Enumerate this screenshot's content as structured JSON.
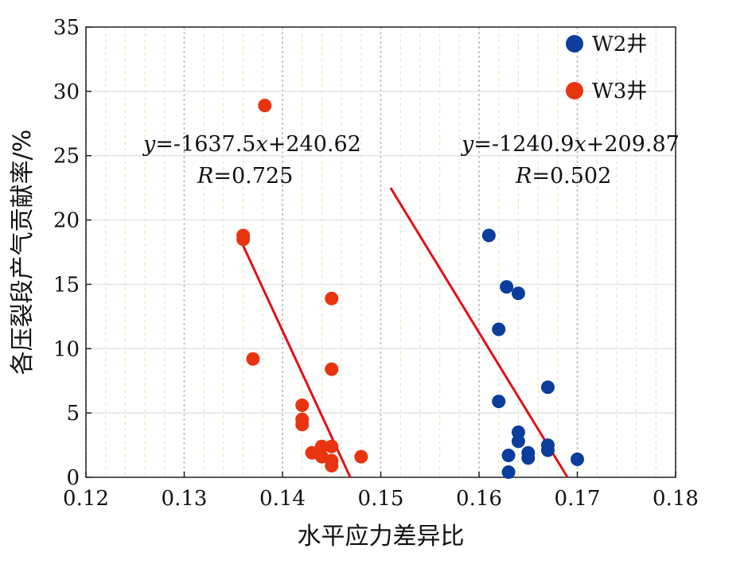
{
  "chart_data": {
    "type": "scatter",
    "xlabel": "水平应力差异比",
    "ylabel": "各压裂段产气贡献率/%",
    "xlim": [
      0.12,
      0.18
    ],
    "ylim": [
      0,
      35
    ],
    "xticks": [
      "0.12",
      "0.13",
      "0.14",
      "0.15",
      "0.16",
      "0.17",
      "0.18"
    ],
    "yticks": [
      "0",
      "5",
      "10",
      "15",
      "20",
      "25",
      "30",
      "35"
    ],
    "grid": true,
    "legend_position": "top-right",
    "series": [
      {
        "name": "W2井",
        "color": "#0a3d9c",
        "points": [
          [
            0.161,
            18.8
          ],
          [
            0.1628,
            14.8
          ],
          [
            0.164,
            14.3
          ],
          [
            0.162,
            11.5
          ],
          [
            0.162,
            5.9
          ],
          [
            0.167,
            7.0
          ],
          [
            0.164,
            3.5
          ],
          [
            0.164,
            2.8
          ],
          [
            0.167,
            2.5
          ],
          [
            0.167,
            2.1
          ],
          [
            0.163,
            1.7
          ],
          [
            0.165,
            1.9
          ],
          [
            0.165,
            1.5
          ],
          [
            0.17,
            1.4
          ],
          [
            0.163,
            0.4
          ]
        ],
        "trendline": {
          "x": [
            0.151,
            0.169
          ],
          "y": [
            22.5,
            0
          ],
          "equation_var": "y",
          "equation_rhs": "=-1240.9",
          "equation_x": "x",
          "equation_tail": "+209.87",
          "r_var": "R",
          "r_value": "=0.502"
        }
      },
      {
        "name": "W3井",
        "color": "#e8340f",
        "points": [
          [
            0.1382,
            28.9
          ],
          [
            0.136,
            18.8
          ],
          [
            0.136,
            18.5
          ],
          [
            0.145,
            13.9
          ],
          [
            0.137,
            9.2
          ],
          [
            0.145,
            8.4
          ],
          [
            0.142,
            5.6
          ],
          [
            0.142,
            4.5
          ],
          [
            0.142,
            4.1
          ],
          [
            0.144,
            2.4
          ],
          [
            0.145,
            2.4
          ],
          [
            0.143,
            1.9
          ],
          [
            0.144,
            1.6
          ],
          [
            0.145,
            1.3
          ],
          [
            0.145,
            0.9
          ],
          [
            0.148,
            1.6
          ]
        ],
        "trendline": {
          "x": [
            0.136,
            0.1469
          ],
          "y": [
            18.0,
            0
          ],
          "equation_var": "y",
          "equation_rhs": "=-1637.5",
          "equation_x": "x",
          "equation_tail": "+240.62",
          "r_var": "R",
          "r_value": "=0.725"
        }
      }
    ]
  }
}
